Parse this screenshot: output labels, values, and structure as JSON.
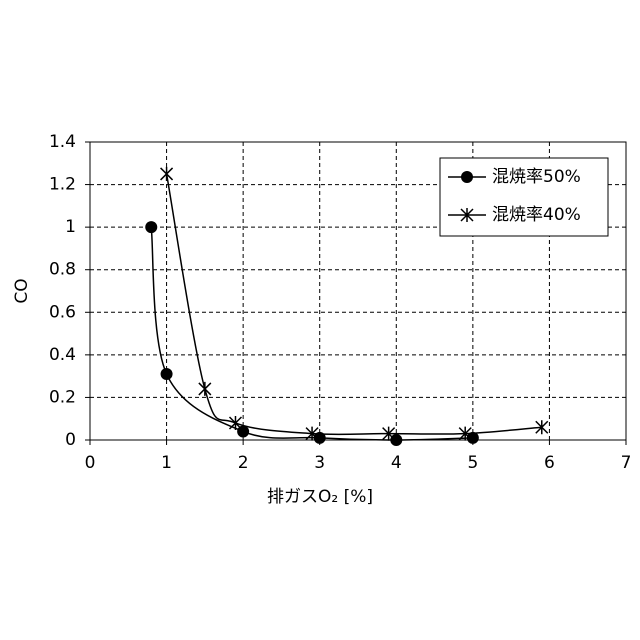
{
  "chart_data": {
    "type": "scatter",
    "x_label": "排ガスO₂ [%]",
    "y_label": "CO",
    "series": [
      {
        "name": "混焼率50%",
        "color": "#000000",
        "marker": "circle",
        "x": [
          0.8,
          1,
          2,
          3,
          4,
          5
        ],
        "values": [
          1.0,
          0.31,
          0.04,
          0.01,
          0.0,
          0.01
        ]
      },
      {
        "name": "混焼率40%",
        "color": "#000000",
        "marker": "star",
        "x": [
          1,
          1.5,
          1.9,
          2.9,
          3.9,
          4.9,
          5.9
        ],
        "values": [
          1.25,
          0.24,
          0.08,
          0.03,
          0.03,
          0.03,
          0.06
        ]
      }
    ],
    "xlim": [
      0,
      7
    ],
    "ylim": [
      0,
      1.4
    ],
    "xticks": [
      0,
      1,
      2,
      3,
      4,
      5,
      6,
      7
    ],
    "yticks": [
      0,
      0.2,
      0.4,
      0.6,
      0.8,
      1,
      1.2,
      1.4
    ],
    "grid": true,
    "smooth": true,
    "legend": "upper-right"
  }
}
